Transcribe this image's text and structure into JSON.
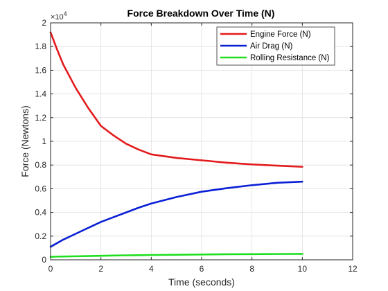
{
  "chart_data": {
    "type": "line",
    "title": "Force Breakdown Over Time (N)",
    "xlabel": "Time (seconds)",
    "ylabel": "Force (Newtons)",
    "y_multiplier": "×10",
    "y_exponent": "4",
    "xlim": [
      0,
      12
    ],
    "ylim": [
      0,
      2
    ],
    "xticks": [
      0,
      2,
      4,
      6,
      8,
      10,
      12
    ],
    "yticks": [
      0,
      0.2,
      0.4,
      0.6,
      0.8,
      1,
      1.2,
      1.4,
      1.6,
      1.8,
      2
    ],
    "ytick_labels": [
      "0",
      "0.2",
      "0.4",
      "0.6",
      "0.8",
      "1",
      "1.2",
      "1.4",
      "1.6",
      "1.8",
      "2"
    ],
    "grid": true,
    "legend_position": "top-right",
    "x": [
      0,
      0.25,
      0.5,
      1,
      1.5,
      2,
      2.5,
      3,
      3.5,
      4,
      5,
      6,
      7,
      8,
      9,
      10
    ],
    "series": [
      {
        "name": "Engine Force (N)",
        "color": "#e31a1c",
        "values": [
          1.92,
          1.78,
          1.65,
          1.45,
          1.28,
          1.13,
          1.05,
          0.98,
          0.93,
          0.89,
          0.86,
          0.84,
          0.82,
          0.805,
          0.795,
          0.785
        ]
      },
      {
        "name": "Air Drag (N)",
        "color": "#0a1fd6",
        "values": [
          0.11,
          0.14,
          0.17,
          0.22,
          0.27,
          0.32,
          0.36,
          0.4,
          0.44,
          0.475,
          0.53,
          0.575,
          0.605,
          0.63,
          0.65,
          0.66
        ]
      },
      {
        "name": "Rolling Resistance (N)",
        "color": "#1fdf1f",
        "values": [
          0.025,
          0.027,
          0.028,
          0.03,
          0.032,
          0.034,
          0.036,
          0.038,
          0.039,
          0.041,
          0.043,
          0.045,
          0.047,
          0.048,
          0.049,
          0.05
        ]
      }
    ]
  }
}
